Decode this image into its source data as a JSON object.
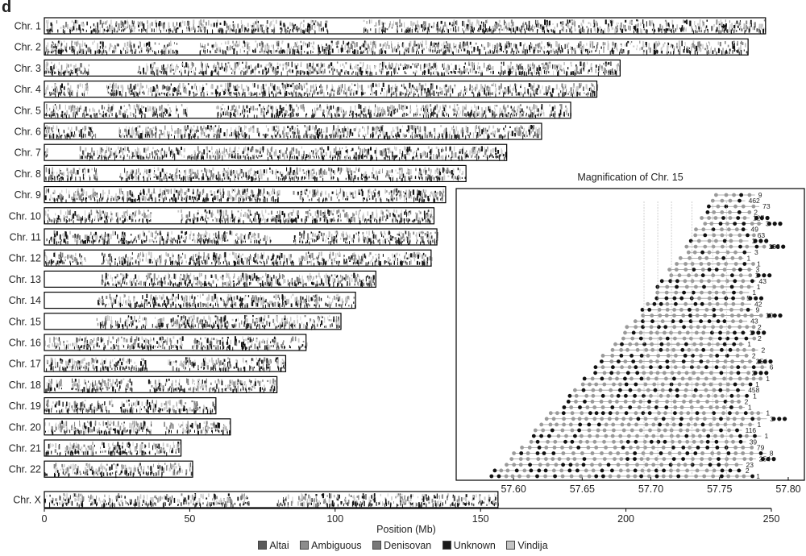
{
  "panel_label": "d",
  "chart_data": [
    {
      "type": "chromosome_ideogram",
      "xlabel": "Position (Mb)",
      "xlim": [
        0,
        250
      ],
      "xticks": [
        0,
        50,
        100,
        150,
        200,
        250
      ],
      "chromosomes": [
        {
          "name": "Chr. 1",
          "length": 248
        },
        {
          "name": "Chr. 2",
          "length": 242
        },
        {
          "name": "Chr. 3",
          "length": 198
        },
        {
          "name": "Chr. 4",
          "length": 190
        },
        {
          "name": "Chr. 5",
          "length": 181
        },
        {
          "name": "Chr. 6",
          "length": 171
        },
        {
          "name": "Chr. 7",
          "length": 159
        },
        {
          "name": "Chr. 8",
          "length": 145
        },
        {
          "name": "Chr. 9",
          "length": 138
        },
        {
          "name": "Chr. 10",
          "length": 134
        },
        {
          "name": "Chr. 11",
          "length": 135
        },
        {
          "name": "Chr. 12",
          "length": 133
        },
        {
          "name": "Chr. 13",
          "length": 114
        },
        {
          "name": "Chr. 14",
          "length": 107
        },
        {
          "name": "Chr. 15",
          "length": 102
        },
        {
          "name": "Chr. 16",
          "length": 90
        },
        {
          "name": "Chr. 17",
          "length": 83
        },
        {
          "name": "Chr. 18",
          "length": 80
        },
        {
          "name": "Chr. 19",
          "length": 59
        },
        {
          "name": "Chr. 20",
          "length": 64
        },
        {
          "name": "Chr. 21",
          "length": 47
        },
        {
          "name": "Chr. 22",
          "length": 51
        },
        {
          "name": "Chr. X",
          "length": 156
        }
      ],
      "legend": [
        {
          "name": "Altai",
          "color": "#5a5a5a"
        },
        {
          "name": "Ambiguous",
          "color": "#8c8c8c"
        },
        {
          "name": "Denisovan",
          "color": "#787878"
        },
        {
          "name": "Unknown",
          "color": "#1a1a1a"
        },
        {
          "name": "Vindija",
          "color": "#c4c4c4"
        }
      ],
      "legend_placement": "bottom"
    },
    {
      "type": "haplotype_network",
      "title": "Magnification of Chr. 15",
      "xlim": [
        57.57,
        57.81
      ],
      "xticks": [
        "57.60",
        "57.65",
        "57.70",
        "57.75",
        "57.80"
      ],
      "haplotype_counts": [
        "9",
        "462",
        "73",
        "2",
        "127",
        "3",
        "49",
        "63",
        "1",
        "138",
        "3",
        "1",
        "1",
        "3",
        "1",
        "43",
        "1",
        "1",
        "5",
        "42",
        "9",
        "10",
        "43",
        "2",
        "1",
        "2",
        "1",
        "2",
        "2",
        "254",
        "6",
        "2",
        "1",
        "1",
        "458",
        "1",
        "2",
        "1",
        "1",
        "3",
        "1",
        "116",
        "1",
        "39",
        "79",
        "8",
        "254",
        "23",
        "2",
        "1"
      ]
    }
  ],
  "colors": {
    "bar_fill": "#ffffff",
    "border": "#000000",
    "mark_dark": "#111111",
    "mark_mid": "#888888",
    "mark_light": "#c8c8c8"
  }
}
